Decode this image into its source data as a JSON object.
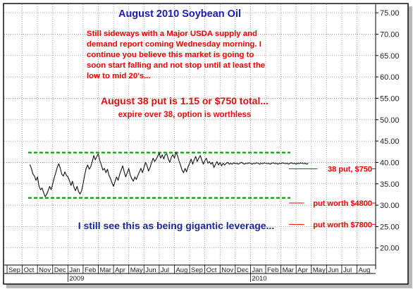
{
  "chart_data": {
    "type": "line",
    "title": "August 2010 Soybean Oil",
    "commentary": [
      "Still sideways with a Major USDA supply and",
      "demand report coming Wednesday morning. I",
      "continue you believe this market is going to",
      "soon start falling and not stop until at least the",
      "low to mid 20's..."
    ],
    "headline": "August 38 put is 1.15 or $750 total...",
    "subheadline": "expire over 38, option is worthless",
    "leverage_note": "I still see this as being gigantic leverage...",
    "yaxis": {
      "ticks": [
        "75.00",
        "70.00",
        "65.00",
        "60.00",
        "55.00",
        "50.00",
        "45.00",
        "40.00",
        "35.00",
        "30.00",
        "25.00",
        "20.00"
      ],
      "tick_values": [
        75,
        70,
        65,
        60,
        55,
        50,
        45,
        40,
        35,
        30,
        25,
        20
      ],
      "range": [
        16,
        77
      ]
    },
    "xaxis": {
      "months": [
        "Sep",
        "Oct",
        "Nov",
        "Dec",
        "Jan",
        "Feb",
        "Mar",
        "Apr",
        "May",
        "Jun",
        "Jul",
        "Aug",
        "Sep",
        "Oct",
        "Nov",
        "Dec",
        "Jan",
        "Feb",
        "Mar",
        "Apr",
        "May",
        "Jun",
        "Jul",
        "Aug"
      ],
      "years": [
        {
          "label": "2009",
          "month_index": 4
        },
        {
          "label": "2010",
          "month_index": 16
        }
      ],
      "month_range": [
        0,
        24
      ]
    },
    "horizontal_lines": [
      {
        "name": "resistance",
        "value": 42.3,
        "color": "#119911"
      },
      {
        "name": "support",
        "value": 31.7,
        "color": "#119911"
      }
    ],
    "annotations": [
      {
        "text": "38 put, $750",
        "y_value": 38.5,
        "color": "#ee0000"
      },
      {
        "text": "put worth $4800",
        "y_value": 30.5,
        "color": "#ee0000"
      },
      {
        "text": "put worth $7800",
        "y_value": 25.5,
        "color": "#ee0000"
      }
    ],
    "series": [
      {
        "x_month_pos": [
          1.5,
          1.6,
          1.7,
          1.8,
          1.9,
          2.0,
          2.1,
          2.2,
          2.3,
          2.4,
          2.5,
          2.6,
          2.7,
          2.8,
          2.9,
          3.0,
          3.1,
          3.2,
          3.3,
          3.4,
          3.5,
          3.6,
          3.7,
          3.8,
          3.9,
          4.0,
          4.1,
          4.2,
          4.3,
          4.4,
          4.5,
          4.6,
          4.7,
          4.8,
          4.9,
          5.0,
          5.1,
          5.2,
          5.3,
          5.4,
          5.5,
          5.6,
          5.7,
          5.8,
          5.9,
          6.0,
          6.1,
          6.2,
          6.3,
          6.4,
          6.5,
          6.6,
          6.7,
          6.8,
          6.9,
          7.0,
          7.1,
          7.2,
          7.3,
          7.4,
          7.5,
          7.6,
          7.7,
          7.8,
          7.9,
          8.0,
          8.1,
          8.2,
          8.3,
          8.4,
          8.5,
          8.6,
          8.7,
          8.8,
          8.9,
          9.0,
          9.1,
          9.2,
          9.3,
          9.4,
          9.5,
          9.6,
          9.7,
          9.8,
          9.9,
          10.0,
          10.1,
          10.2,
          10.3,
          10.4,
          10.5,
          10.6,
          10.7,
          10.8,
          10.9,
          11.0,
          11.1,
          11.2,
          11.3,
          11.4,
          11.5,
          11.6,
          11.7,
          11.8,
          11.9,
          12.0,
          12.1,
          12.2,
          12.3,
          12.4,
          12.5,
          12.6,
          12.7,
          12.8,
          12.9,
          13.0,
          13.1,
          13.2,
          13.3,
          13.4,
          13.5,
          13.6,
          13.7,
          13.8,
          13.9,
          14.0,
          14.1,
          14.2,
          14.3,
          14.4,
          14.5,
          14.6,
          14.7,
          14.8,
          14.9,
          15.0,
          15.1,
          15.2,
          15.3,
          15.4,
          15.5,
          15.6,
          15.7,
          15.8,
          15.9,
          16.0,
          16.1,
          16.2,
          16.3,
          16.4,
          16.5,
          16.6,
          16.7,
          16.8,
          16.9,
          17.0,
          17.1,
          17.2,
          17.3,
          17.4,
          17.5,
          17.6,
          17.7,
          17.8,
          17.9,
          18.0,
          18.1,
          18.2,
          18.3,
          18.4,
          18.5,
          18.6,
          18.7,
          18.8,
          18.9,
          19.0,
          19.1,
          19.2,
          19.3,
          19.4,
          19.5,
          19.6,
          19.7,
          19.8
        ],
        "values": [
          39.5,
          38.6,
          37.3,
          36.8,
          35.8,
          36.6,
          34.5,
          33.6,
          34.0,
          33.0,
          32.0,
          32.5,
          33.4,
          34.4,
          33.6,
          35.0,
          36.4,
          37.6,
          38.8,
          39.7,
          38.6,
          37.2,
          36.8,
          37.8,
          37.0,
          36.6,
          35.8,
          34.6,
          35.6,
          34.2,
          33.4,
          34.4,
          33.2,
          32.6,
          33.4,
          35.0,
          37.0,
          38.6,
          39.4,
          38.4,
          39.0,
          40.2,
          41.6,
          40.6,
          41.4,
          42.0,
          40.4,
          39.4,
          38.2,
          38.6,
          37.6,
          38.4,
          37.0,
          36.2,
          35.2,
          34.4,
          35.6,
          36.6,
          35.8,
          37.2,
          38.2,
          39.2,
          37.8,
          36.6,
          37.6,
          38.6,
          37.0,
          36.2,
          35.6,
          36.6,
          36.0,
          37.0,
          37.8,
          38.6,
          37.6,
          38.8,
          40.0,
          39.2,
          38.0,
          38.8,
          40.0,
          41.0,
          40.2,
          40.8,
          41.4,
          42.2,
          41.0,
          41.8,
          40.8,
          41.8,
          42.0,
          40.8,
          40.0,
          41.2,
          41.8,
          41.0,
          42.4,
          41.6,
          40.4,
          39.4,
          38.2,
          37.6,
          38.6,
          37.8,
          39.0,
          39.8,
          40.8,
          39.6,
          40.6,
          41.4,
          40.2,
          41.0,
          41.6,
          40.6,
          39.6,
          40.4,
          41.0,
          39.8,
          40.2,
          39.6,
          40.0,
          38.8,
          39.6,
          40.2,
          39.4,
          40.0,
          39.2,
          39.8,
          39.4,
          39.8,
          40.0,
          39.6,
          39.8,
          39.6,
          39.9,
          39.7,
          39.8,
          39.6,
          39.8,
          40.0,
          39.8,
          39.6,
          39.8,
          39.7,
          39.9,
          39.8,
          39.6,
          39.8,
          39.7,
          39.9,
          39.8,
          39.6,
          39.8,
          39.7,
          39.9,
          39.8,
          39.7,
          39.8,
          39.6,
          39.8,
          39.9,
          39.7,
          39.8,
          39.6,
          39.8,
          39.7,
          39.9,
          39.8,
          39.7,
          39.8,
          39.6,
          39.8,
          39.9,
          39.7,
          39.8,
          39.6,
          39.8,
          39.7,
          39.9,
          39.8,
          39.7,
          39.8,
          39.6,
          39.8,
          39.9,
          39.7,
          39.8,
          39.6
        ]
      }
    ],
    "grid": true,
    "colors": {
      "title": "#1c1cb8",
      "commentary": "#ee0000",
      "headline": "#dd1111",
      "leverage": "#1a2a99",
      "price_line": "#111111",
      "grid": "#8a8a8a",
      "border": "#000000"
    }
  }
}
